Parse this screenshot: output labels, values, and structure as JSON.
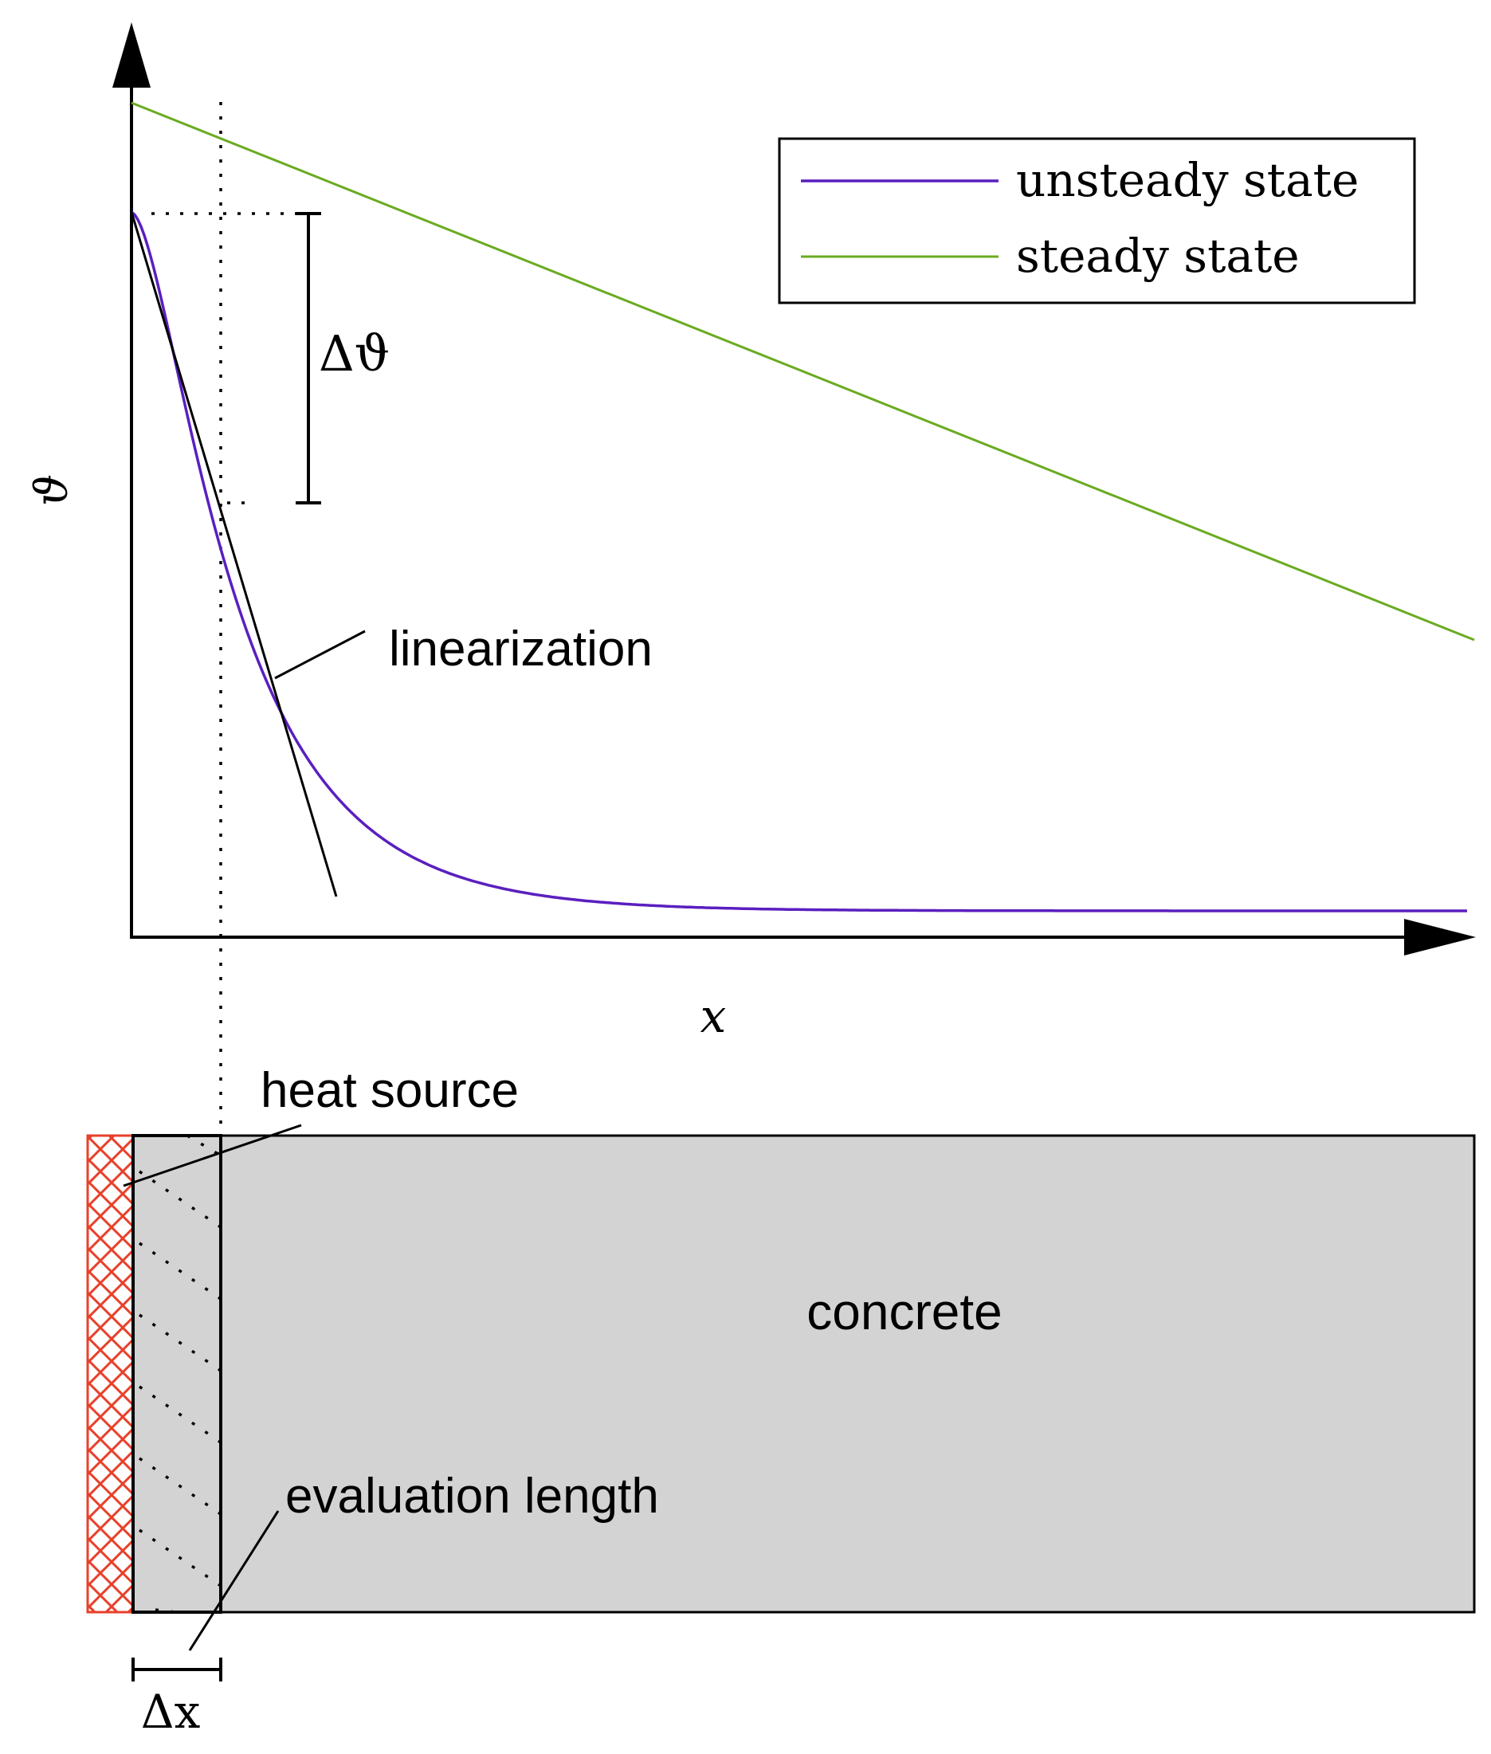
{
  "plot": {
    "y_axis_label": "ϑ",
    "x_axis_label": "x",
    "delta_theta_label": "Δϑ",
    "linearization_label": "linearization",
    "legend": [
      {
        "label": "unsteady state",
        "color": "#5a1fbf"
      },
      {
        "label": "steady state",
        "color": "#6aab22"
      }
    ]
  },
  "specimen": {
    "heat_source_label": "heat source",
    "material_label": "concrete",
    "evaluation_length_label": "evaluation length",
    "delta_x_label": "Δx",
    "heat_source_color": "#e8402a",
    "concrete_color": "#d3d3d3"
  }
}
